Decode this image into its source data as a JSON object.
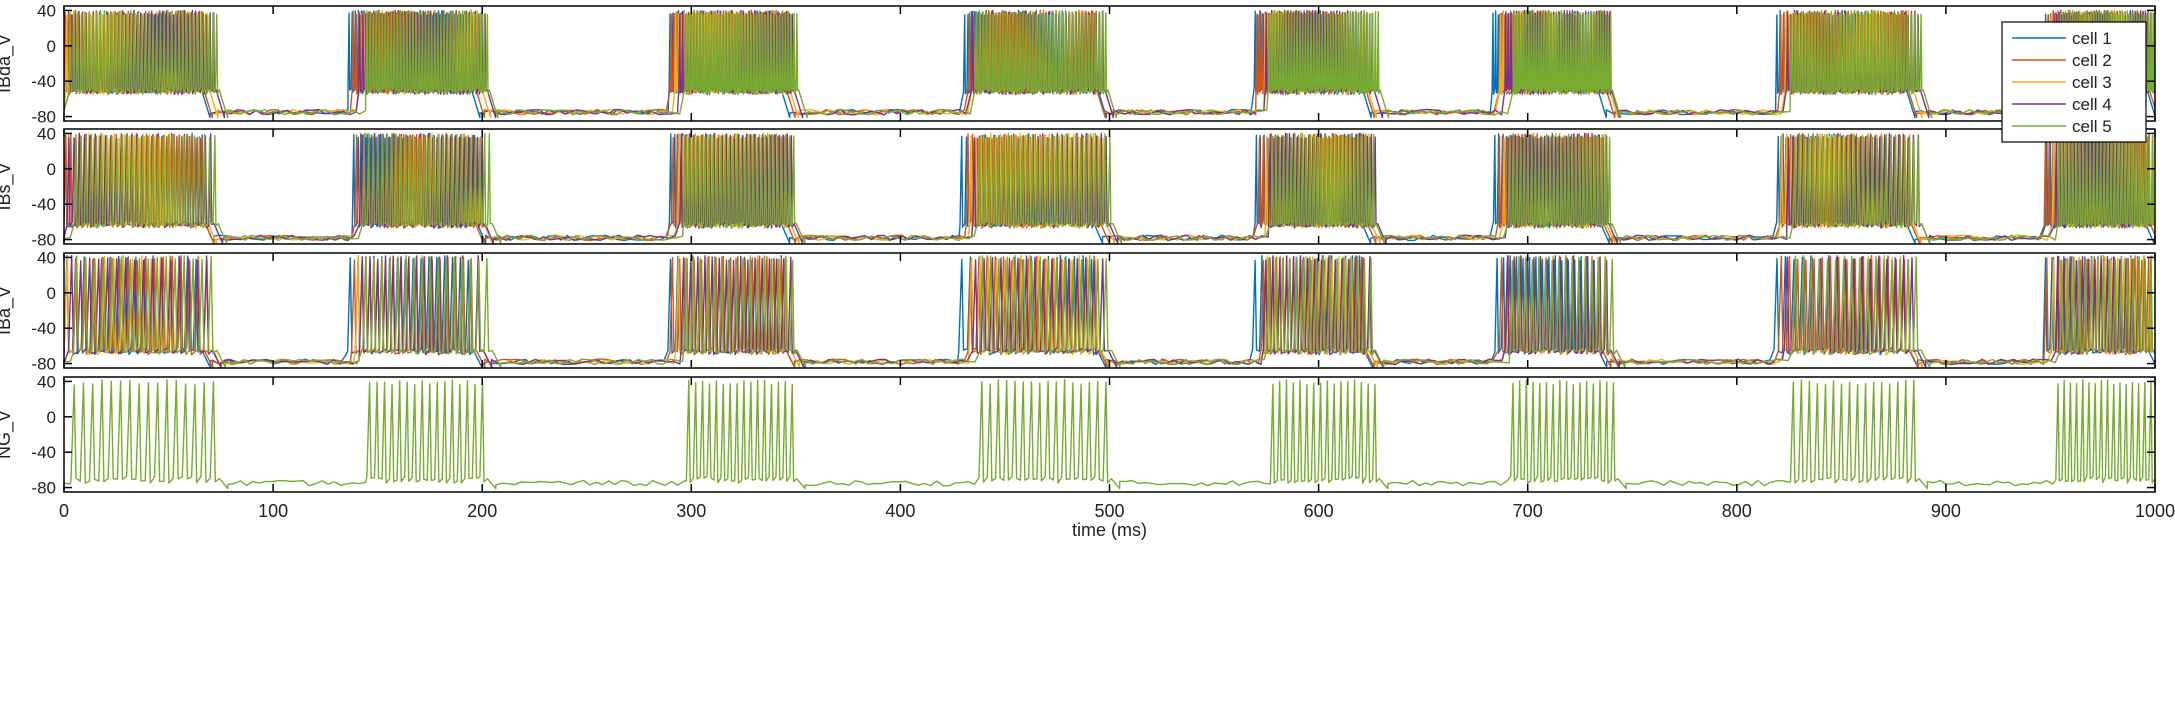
{
  "chart_data": {
    "type": "line",
    "xlabel": "time (ms)",
    "xlim": [
      0,
      1000
    ],
    "xticks": [
      0,
      100,
      200,
      300,
      400,
      500,
      600,
      700,
      800,
      900,
      1000
    ],
    "yticks": [
      -80,
      -40,
      0,
      40
    ],
    "ylim": [
      -85,
      45
    ],
    "legend": {
      "placement": "top-right",
      "entries": [
        "cell 1",
        "cell 2",
        "cell 3",
        "cell 4",
        "cell 5"
      ]
    },
    "series_colors": [
      "#0072BD",
      "#D95319",
      "#EDB120",
      "#7E2F8E",
      "#77AC30"
    ],
    "burst_windows": [
      [
        0,
        70
      ],
      [
        140,
        200
      ],
      [
        293,
        348
      ],
      [
        433,
        497
      ],
      [
        573,
        625
      ],
      [
        688,
        738
      ],
      [
        822,
        885
      ],
      [
        950,
        1000
      ]
    ],
    "panels": [
      {
        "ylabel": "IBda_V",
        "spike_peak": 40,
        "plateau_trough": -50,
        "rest": -75,
        "spikes_per_burst": 40,
        "cells": [
          "cell 1",
          "cell 2",
          "cell 3",
          "cell 4",
          "cell 5"
        ]
      },
      {
        "ylabel": "IBs_V",
        "spike_peak": 40,
        "plateau_trough": -62,
        "rest": -78,
        "spikes_per_burst": 28,
        "cells": [
          "cell 1",
          "cell 2",
          "cell 3",
          "cell 4",
          "cell 5"
        ]
      },
      {
        "ylabel": "IBa_V",
        "spike_peak": 42,
        "plateau_trough": -65,
        "rest": -78,
        "spikes_per_burst": 16,
        "cells": [
          "cell 1",
          "cell 2",
          "cell 3",
          "cell 4",
          "cell 5"
        ]
      },
      {
        "ylabel": "NG_V",
        "spike_peak": 42,
        "plateau_trough": -70,
        "rest": -75,
        "spikes_per_burst": 16,
        "cells": [
          "cell 5"
        ]
      }
    ]
  }
}
